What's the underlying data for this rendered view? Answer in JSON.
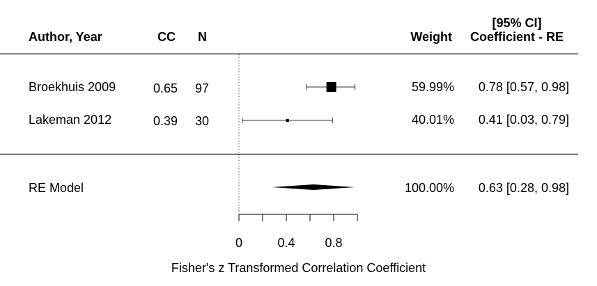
{
  "headers": {
    "author": "Author, Year",
    "cc": "CC",
    "n": "N",
    "weight": "Weight",
    "ci_top": "[95% CI]",
    "coef": "Coefficient - RE"
  },
  "chart_data": {
    "type": "forest",
    "xlabel": "Fisher's z Transformed Correlation Coefficient",
    "xlim": [
      0,
      1.0
    ],
    "xticks": [
      0,
      0.2,
      0.4,
      0.6,
      0.8,
      1.0
    ],
    "xtick_labels": [
      "0",
      "0.4",
      "0.8"
    ],
    "xtick_label_values": [
      0,
      0.4,
      0.8
    ],
    "reference_line": 0,
    "studies": [
      {
        "author": "Broekhuis 2009",
        "cc": "0.65",
        "n": "97",
        "estimate": 0.78,
        "ci_low": 0.57,
        "ci_high": 0.98,
        "weight": 59.99,
        "weight_label": "59.99%",
        "ci_label": "0.78 [0.57, 0.98]"
      },
      {
        "author": "Lakeman 2012",
        "cc": "0.39",
        "n": "30",
        "estimate": 0.41,
        "ci_low": 0.03,
        "ci_high": 0.79,
        "weight": 40.01,
        "weight_label": "40.01%",
        "ci_label": "0.41 [0.03, 0.79]"
      }
    ],
    "summary": {
      "label": "RE Model",
      "estimate": 0.63,
      "ci_low": 0.28,
      "ci_high": 0.98,
      "weight_label": "100.00%",
      "ci_label": "0.63 [0.28, 0.98]"
    }
  }
}
